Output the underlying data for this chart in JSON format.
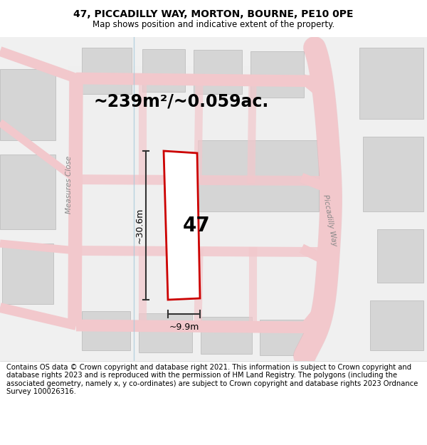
{
  "title": "47, PICCADILLY WAY, MORTON, BOURNE, PE10 0PE",
  "subtitle": "Map shows position and indicative extent of the property.",
  "area_label": "~239m²/~0.059ac.",
  "plot_number": "47",
  "dim_width": "~9.9m",
  "dim_height": "~30.6m",
  "footer": "Contains OS data © Crown copyright and database right 2021. This information is subject to Crown copyright and database rights 2023 and is reproduced with the permission of HM Land Registry. The polygons (including the associated geometry, namely x, y co-ordinates) are subject to Crown copyright and database rights 2023 Ordnance Survey 100026316.",
  "title_fontsize": 10,
  "subtitle_fontsize": 8.5,
  "area_fontsize": 17,
  "plot_num_fontsize": 20,
  "dim_fontsize": 9,
  "footer_fontsize": 7.2,
  "map_bg": "#f7f7f7",
  "road_fill": "#f2c8cc",
  "road_outline": "#e8a0a8",
  "block_fill": "#d8d8d8",
  "block_edge": "#c0c0c0",
  "plot_red": "#cc0000",
  "dim_line_color": "#333333",
  "street_label_color": "#888888",
  "blue_line": "#aaccdd"
}
